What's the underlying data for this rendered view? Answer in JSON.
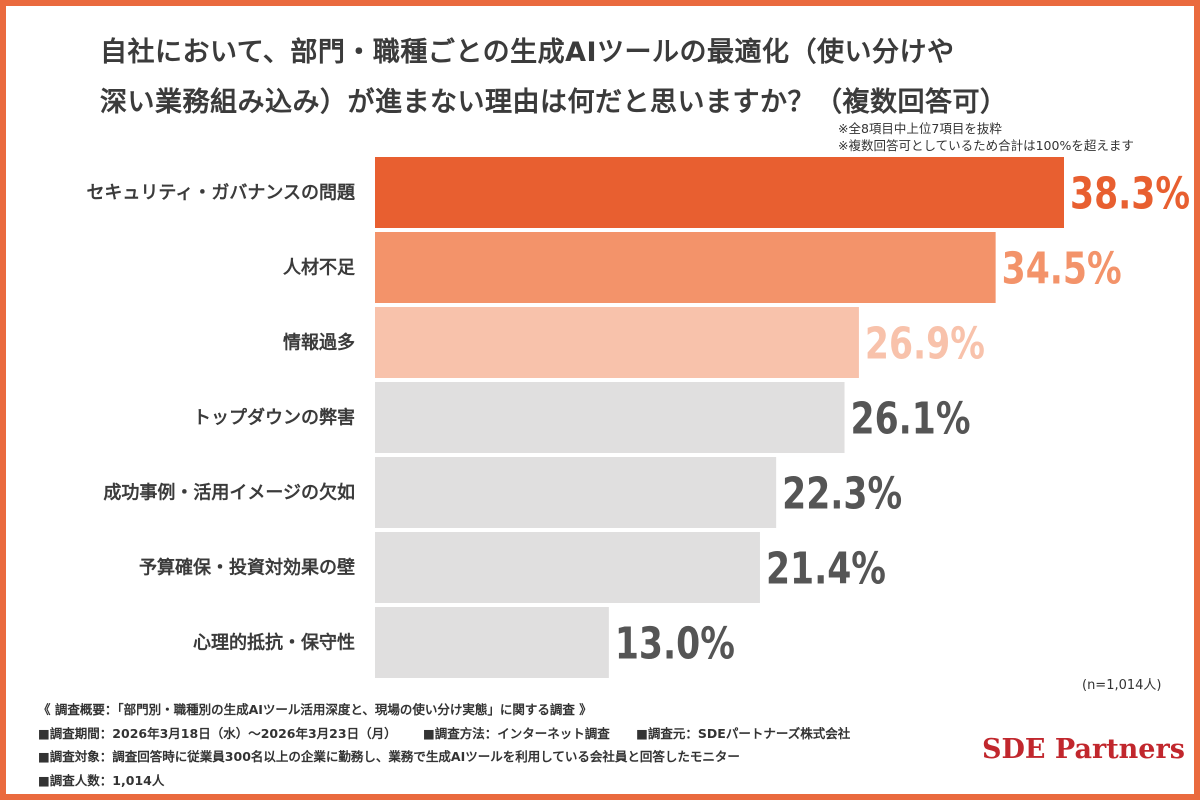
{
  "title_lines": [
    "自社において、部門・職種ごとの生成AIツールの最適化（使い分けや",
    "深い業務組み込み）が進まない理由は何だと思いますか？（複数回答可）"
  ],
  "notes": [
    "※全8項目中上位7項目を抜粋",
    "※複数回答可としているため合計は100%を超えます"
  ],
  "chart_data": {
    "type": "bar",
    "orientation": "horizontal",
    "title": "自社において、部門・職種ごとの生成AIツールの最適化（使い分けや深い業務組み込み）が進まない理由は何だと思いますか？（複数回答可）",
    "categories": [
      "セキュリティ・ガバナンスの問題",
      "人材不足",
      "情報過多",
      "トップダウンの弊害",
      "成功事例・活用イメージの欠如",
      "予算確保・投資対効果の壁",
      "心理的抵抗・保守性"
    ],
    "values": [
      38.3,
      34.5,
      26.9,
      26.1,
      22.3,
      21.4,
      13.0
    ],
    "value_labels": [
      "38.3%",
      "34.5%",
      "26.9%",
      "26.1%",
      "22.3%",
      "21.4%",
      "13.0%"
    ],
    "unit": "%",
    "xlim": [
      0,
      42
    ],
    "grid": false,
    "bar_colors": [
      "#e85f30",
      "#f3936a",
      "#f8c2ab",
      "#e0dfdf",
      "#e0dfdf",
      "#e0dfdf",
      "#e0dfdf"
    ],
    "label_colors": [
      "#e85f30",
      "#f3936a",
      "#f8c2ab",
      "#555555",
      "#555555",
      "#555555",
      "#555555"
    ]
  },
  "sample_size": "(n=1,014人)",
  "survey": {
    "summary": "《 調査概要：「部門別・職種別の生成AIツール活用深度と、現場の使い分け実態」に関する調査 》",
    "period": "■調査期間：2026年3月18日（水）〜2026年3月23日（月）",
    "method": "■調査方法：インターネット調査",
    "organizer": "■調査元：SDEパートナーズ株式会社",
    "target": "■調査対象：調査回答時に従業員300名以上の企業に勤務し、業務で生成AIツールを利用している会社員と回答したモニター",
    "respondents": "■調査人数：1,014人"
  },
  "brand": "SDE Partners",
  "colors": {
    "frame": "#ea6a3e",
    "brand": "#c1272d",
    "text": "#3b3b3b"
  }
}
